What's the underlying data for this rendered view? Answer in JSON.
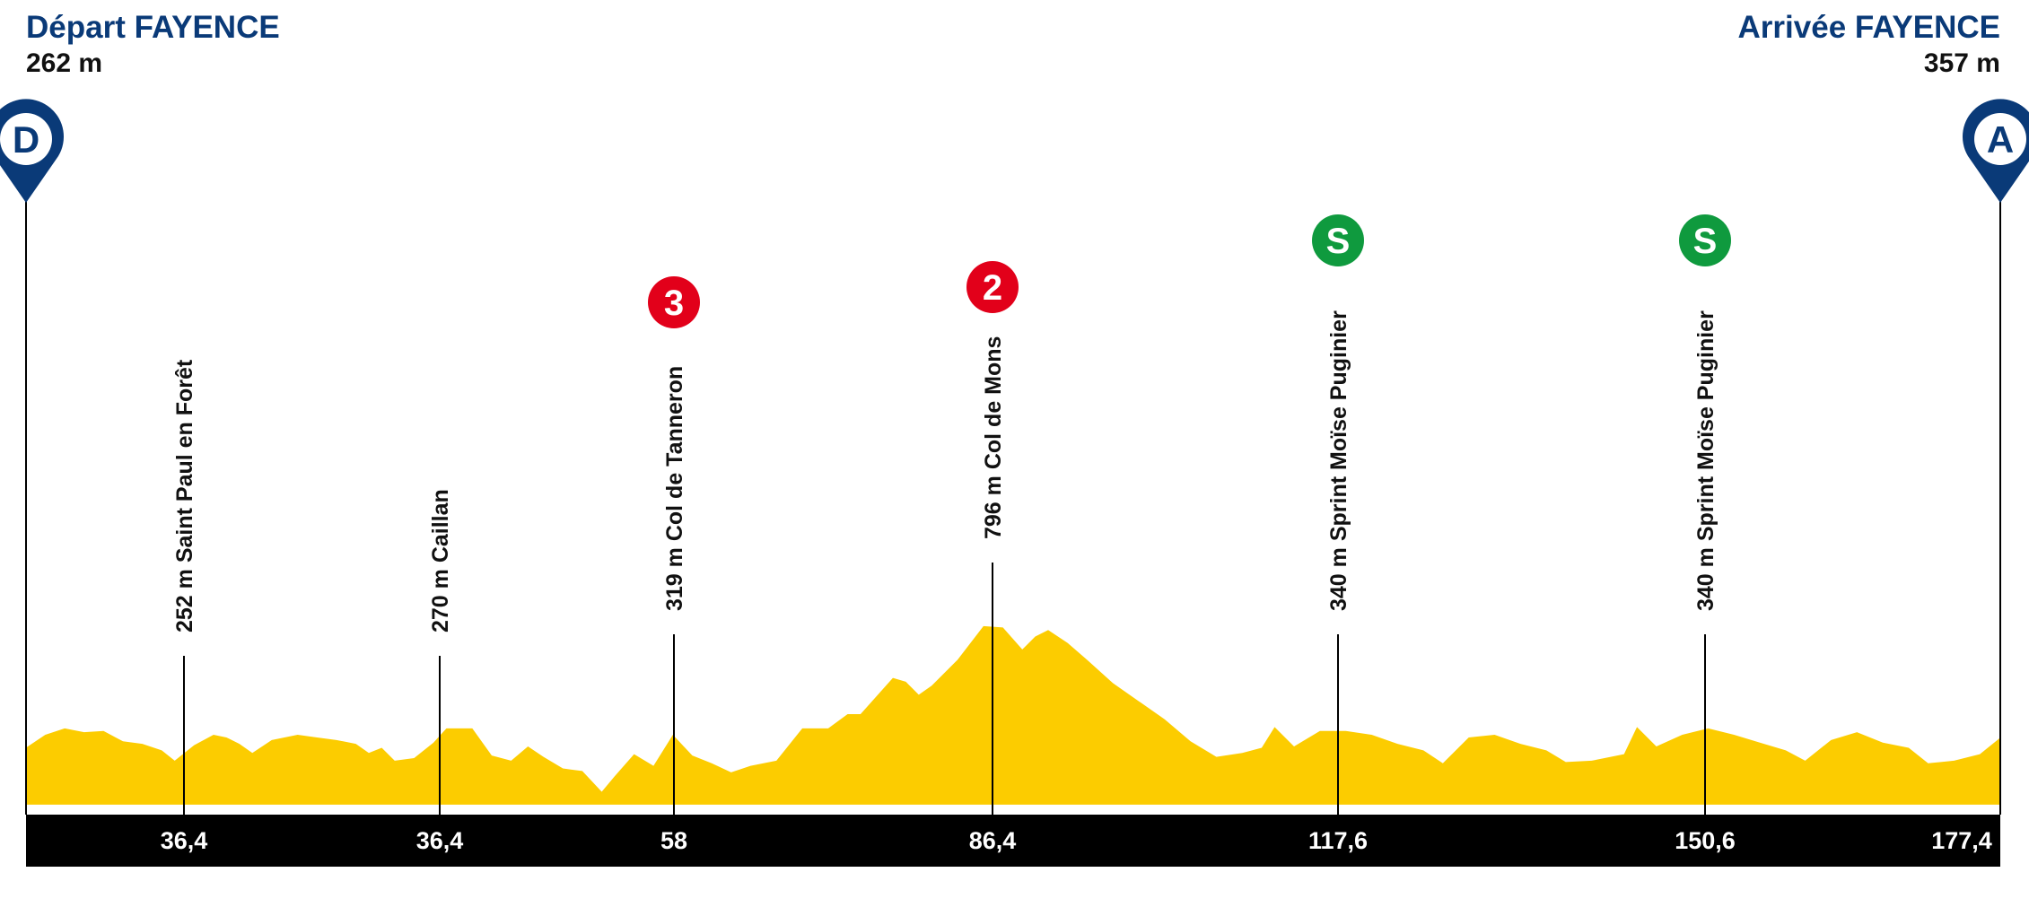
{
  "start": {
    "label": "Départ FAYENCE",
    "elevation": "262 m",
    "pin": "D"
  },
  "finish": {
    "label": "Arrivée FAYENCE",
    "elevation": "357 m",
    "pin": "A",
    "km": "177,4"
  },
  "markers": [
    {
      "name": "252 m Saint Paul en Forêt",
      "km": "36,4"
    },
    {
      "name": "270 m Caillan",
      "km": "36,4"
    },
    {
      "name": "319 m Col de Tanneron",
      "km": "58",
      "badge": "3"
    },
    {
      "name": "796 m Col de Mons",
      "km": "86,4",
      "badge": "2"
    },
    {
      "name": "340 m Sprint Moïse Puginier",
      "km": "117,6",
      "badge": "S"
    },
    {
      "name": "340 m Sprint Moïse Puginier",
      "km": "150,6",
      "badge": "S"
    }
  ]
}
